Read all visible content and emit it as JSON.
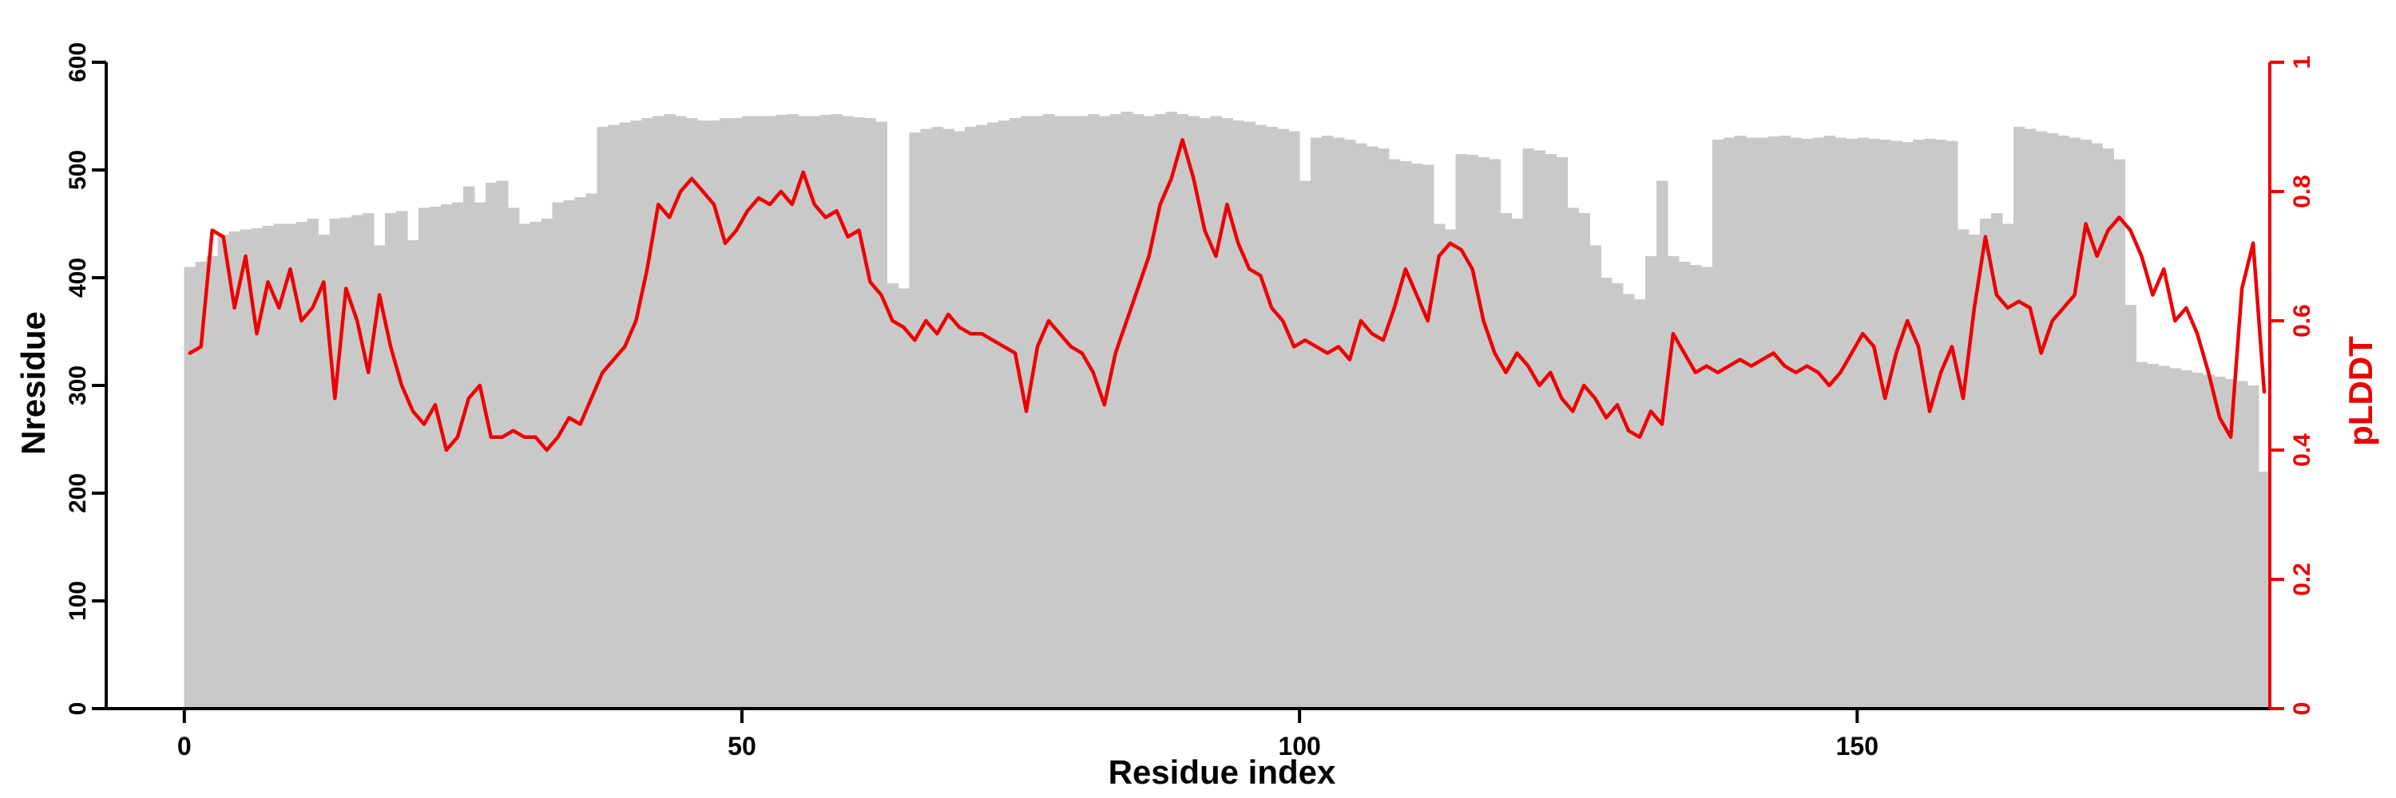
{
  "chart_data": {
    "type": "bar",
    "title": "",
    "xlabel": "Residue index",
    "ylabel_left": "Nresidue",
    "ylabel_right": "pLDDT",
    "x_start": 0,
    "x_ticks": [
      0,
      50,
      100,
      150
    ],
    "y_left": {
      "lim": [
        0,
        600
      ],
      "ticks": [
        0,
        100,
        200,
        300,
        400,
        500,
        600
      ]
    },
    "y_right": {
      "lim": [
        0,
        1
      ],
      "ticks": [
        0,
        0.2,
        0.4,
        0.6,
        0.8,
        1
      ],
      "tick_labels": [
        "0",
        "0.2",
        "0.4",
        "0.6",
        "0.8",
        "1"
      ]
    },
    "grid": false,
    "legend": "none",
    "colors": {
      "bars": "#c9c9c9",
      "line": "#ee0000",
      "axis_left": "#000000",
      "axis_right": "#ee0000"
    },
    "series": [
      {
        "name": "Nresidue",
        "type": "bar",
        "axis": "left",
        "color": "#c9c9c9",
        "values": [
          410,
          415,
          420,
          440,
          443,
          445,
          446,
          448,
          450,
          450,
          452,
          455,
          440,
          455,
          456,
          458,
          460,
          430,
          460,
          462,
          435,
          465,
          466,
          468,
          470,
          485,
          470,
          488,
          490,
          465,
          450,
          452,
          455,
          470,
          472,
          475,
          478,
          540,
          542,
          544,
          546,
          548,
          550,
          552,
          550,
          548,
          546,
          546,
          548,
          548,
          550,
          550,
          550,
          551,
          552,
          550,
          550,
          551,
          552,
          550,
          549,
          548,
          545,
          395,
          390,
          535,
          538,
          540,
          538,
          536,
          540,
          542,
          544,
          546,
          548,
          550,
          550,
          552,
          550,
          550,
          550,
          552,
          550,
          552,
          554,
          552,
          550,
          552,
          554,
          552,
          550,
          548,
          550,
          548,
          546,
          545,
          542,
          540,
          538,
          536,
          490,
          530,
          532,
          530,
          528,
          525,
          522,
          520,
          510,
          508,
          506,
          505,
          450,
          445,
          515,
          514,
          512,
          510,
          460,
          455,
          520,
          518,
          515,
          512,
          465,
          460,
          430,
          400,
          395,
          385,
          380,
          420,
          490,
          420,
          415,
          412,
          410,
          528,
          530,
          532,
          530,
          530,
          531,
          532,
          530,
          529,
          530,
          532,
          530,
          529,
          530,
          529,
          528,
          527,
          526,
          528,
          529,
          528,
          527,
          445,
          440,
          455,
          460,
          450,
          540,
          538,
          536,
          534,
          532,
          530,
          528,
          525,
          520,
          510,
          375,
          322,
          320,
          318,
          316,
          314,
          312,
          310,
          308,
          306,
          304,
          300,
          220
        ]
      },
      {
        "name": "pLDDT",
        "type": "line",
        "axis": "right",
        "color": "#ee0000",
        "values": [
          0.55,
          0.56,
          0.74,
          0.73,
          0.62,
          0.7,
          0.58,
          0.66,
          0.62,
          0.68,
          0.6,
          0.62,
          0.66,
          0.48,
          0.65,
          0.6,
          0.52,
          0.64,
          0.56,
          0.5,
          0.46,
          0.44,
          0.47,
          0.4,
          0.42,
          0.48,
          0.5,
          0.42,
          0.42,
          0.43,
          0.42,
          0.42,
          0.4,
          0.42,
          0.45,
          0.44,
          0.48,
          0.52,
          0.54,
          0.56,
          0.6,
          0.68,
          0.78,
          0.76,
          0.8,
          0.82,
          0.8,
          0.78,
          0.72,
          0.74,
          0.77,
          0.79,
          0.78,
          0.8,
          0.78,
          0.83,
          0.78,
          0.76,
          0.77,
          0.73,
          0.74,
          0.66,
          0.64,
          0.6,
          0.59,
          0.57,
          0.6,
          0.58,
          0.61,
          0.59,
          0.58,
          0.58,
          0.57,
          0.56,
          0.55,
          0.46,
          0.56,
          0.6,
          0.58,
          0.56,
          0.55,
          0.52,
          0.47,
          0.55,
          0.6,
          0.65,
          0.7,
          0.78,
          0.82,
          0.88,
          0.82,
          0.74,
          0.7,
          0.78,
          0.72,
          0.68,
          0.67,
          0.62,
          0.6,
          0.56,
          0.57,
          0.56,
          0.55,
          0.56,
          0.54,
          0.6,
          0.58,
          0.57,
          0.62,
          0.68,
          0.64,
          0.6,
          0.7,
          0.72,
          0.71,
          0.68,
          0.6,
          0.55,
          0.52,
          0.55,
          0.53,
          0.5,
          0.52,
          0.48,
          0.46,
          0.5,
          0.48,
          0.45,
          0.47,
          0.43,
          0.42,
          0.46,
          0.44,
          0.58,
          0.55,
          0.52,
          0.53,
          0.52,
          0.53,
          0.54,
          0.53,
          0.54,
          0.55,
          0.53,
          0.52,
          0.53,
          0.52,
          0.5,
          0.52,
          0.55,
          0.58,
          0.56,
          0.48,
          0.55,
          0.6,
          0.56,
          0.46,
          0.52,
          0.56,
          0.48,
          0.62,
          0.73,
          0.64,
          0.62,
          0.63,
          0.62,
          0.55,
          0.6,
          0.62,
          0.64,
          0.75,
          0.7,
          0.74,
          0.76,
          0.74,
          0.7,
          0.64,
          0.68,
          0.6,
          0.62,
          0.58,
          0.52,
          0.45,
          0.42,
          0.65,
          0.72,
          0.49
        ]
      }
    ]
  }
}
